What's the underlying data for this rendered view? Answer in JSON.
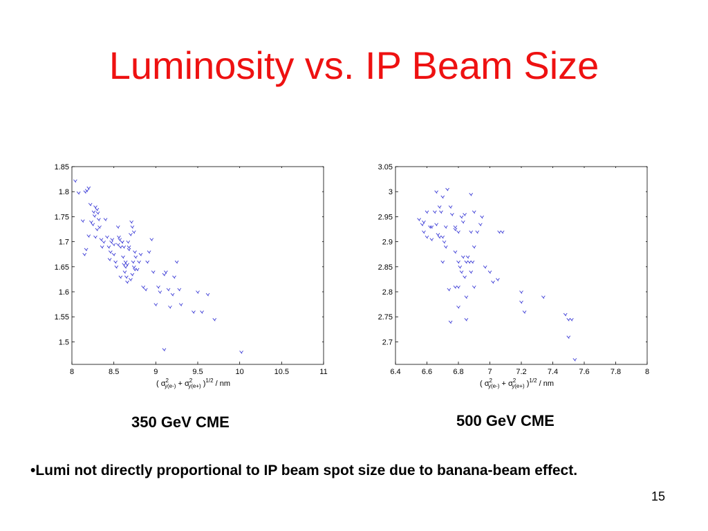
{
  "title": "Luminosity vs. IP Beam Size",
  "captions": {
    "left": "350 GeV CME",
    "right": "500 GeV CME"
  },
  "bullet": "•Lumi not directly proportional to IP beam spot size due to banana-beam effect.",
  "page_number": "15",
  "colors": {
    "title": "#ee1111",
    "points": "#3b3bd6"
  },
  "chart_data": [
    {
      "type": "scatter",
      "title": "350 GeV CME",
      "xlabel": "( σ²y(e-) + σ²y(e+) )^1/2 / nm",
      "ylabel": "",
      "xlim": [
        8,
        11
      ],
      "ylim": [
        1.455,
        1.85
      ],
      "xticks": [
        "8",
        "8.5",
        "9",
        "9.5",
        "10",
        "10.5",
        "11"
      ],
      "xtick_values": [
        8,
        8.5,
        9,
        9.5,
        10,
        10.5,
        11
      ],
      "yticks": [
        "1.5",
        "1.55",
        "1.6",
        "1.65",
        "1.7",
        "1.75",
        "1.8",
        "1.85"
      ],
      "ytick_values": [
        1.5,
        1.55,
        1.6,
        1.65,
        1.7,
        1.75,
        1.8,
        1.85
      ],
      "x": [
        8.04,
        8.08,
        8.13,
        8.16,
        8.18,
        8.2,
        8.22,
        8.15,
        8.17,
        8.2,
        8.23,
        8.25,
        8.27,
        8.28,
        8.3,
        8.31,
        8.32,
        8.33,
        8.3,
        8.28,
        8.26,
        8.35,
        8.36,
        8.38,
        8.4,
        8.42,
        8.44,
        8.45,
        8.46,
        8.47,
        8.48,
        8.5,
        8.52,
        8.53,
        8.55,
        8.56,
        8.57,
        8.58,
        8.6,
        8.61,
        8.62,
        8.63,
        8.64,
        8.65,
        8.66,
        8.67,
        8.68,
        8.7,
        8.71,
        8.72,
        8.73,
        8.74,
        8.75,
        8.76,
        8.6,
        8.62,
        8.64,
        8.7,
        8.72,
        8.75,
        8.78,
        8.8,
        8.82,
        8.85,
        8.88,
        8.9,
        8.92,
        8.95,
        8.97,
        9.0,
        9.03,
        9.05,
        9.1,
        9.12,
        9.15,
        9.17,
        9.2,
        9.22,
        9.25,
        9.28,
        9.3,
        9.45,
        9.5,
        9.55,
        9.62,
        9.7,
        9.1,
        10.02,
        8.58,
        8.68,
        8.74,
        8.55,
        8.5,
        8.66
      ],
      "y": [
        1.822,
        1.798,
        1.742,
        1.8,
        1.803,
        1.808,
        1.775,
        1.675,
        1.685,
        1.712,
        1.74,
        1.735,
        1.752,
        1.77,
        1.765,
        1.758,
        1.745,
        1.73,
        1.725,
        1.71,
        1.76,
        1.705,
        1.69,
        1.7,
        1.745,
        1.71,
        1.69,
        1.665,
        1.68,
        1.7,
        1.705,
        1.675,
        1.66,
        1.65,
        1.695,
        1.71,
        1.705,
        1.69,
        1.7,
        1.67,
        1.655,
        1.64,
        1.65,
        1.63,
        1.62,
        1.7,
        1.685,
        1.715,
        1.74,
        1.73,
        1.66,
        1.65,
        1.645,
        1.67,
        1.7,
        1.69,
        1.66,
        1.625,
        1.635,
        1.68,
        1.645,
        1.66,
        1.675,
        1.61,
        1.605,
        1.66,
        1.68,
        1.705,
        1.64,
        1.575,
        1.61,
        1.6,
        1.635,
        1.64,
        1.605,
        1.57,
        1.595,
        1.63,
        1.66,
        1.605,
        1.575,
        1.56,
        1.6,
        1.56,
        1.595,
        1.545,
        1.485,
        1.48,
        1.63,
        1.69,
        1.72,
        1.73,
        1.695,
        1.655
      ]
    },
    {
      "type": "scatter",
      "title": "500 GeV CME",
      "xlabel": "( σ²y(e-) + σ²y(e+) )^1/2 / nm",
      "ylabel": "",
      "xlim": [
        6.4,
        8
      ],
      "ylim": [
        2.655,
        3.05
      ],
      "xticks": [
        "6.4",
        "6.6",
        "6.8",
        "7",
        "7.2",
        "7.4",
        "7.6",
        "7.8",
        "8"
      ],
      "xtick_values": [
        6.4,
        6.6,
        6.8,
        7,
        7.2,
        7.4,
        7.6,
        7.8,
        8
      ],
      "yticks": [
        "2.7",
        "2.75",
        "2.8",
        "2.85",
        "2.9",
        "2.95",
        "3",
        "3.05"
      ],
      "ytick_values": [
        2.7,
        2.75,
        2.8,
        2.85,
        2.9,
        2.95,
        3.0,
        3.05
      ],
      "x": [
        6.55,
        6.57,
        6.58,
        6.6,
        6.62,
        6.63,
        6.58,
        6.6,
        6.65,
        6.67,
        6.68,
        6.7,
        6.72,
        6.66,
        6.69,
        6.63,
        6.7,
        6.72,
        6.75,
        6.76,
        6.78,
        6.78,
        6.8,
        6.82,
        6.8,
        6.81,
        6.82,
        6.83,
        6.84,
        6.85,
        6.86,
        6.87,
        6.88,
        6.89,
        6.9,
        6.92,
        6.94,
        6.95,
        6.9,
        6.97,
        7.0,
        7.02,
        7.05,
        7.06,
        6.78,
        6.74,
        6.8,
        6.83,
        6.85,
        6.88,
        6.88,
        6.75,
        6.71,
        6.7,
        6.8,
        6.85,
        7.2,
        7.2,
        7.22,
        7.34,
        7.48,
        7.5,
        7.5,
        7.52,
        7.54,
        6.73,
        6.78,
        6.84,
        6.68,
        6.66,
        6.9,
        7.08
      ],
      "y": [
        2.945,
        2.935,
        2.92,
        2.91,
        2.93,
        2.905,
        2.94,
        2.96,
        2.96,
        2.915,
        2.91,
        2.99,
        2.93,
        3.0,
        2.96,
        2.93,
        2.91,
        2.89,
        2.97,
        2.955,
        2.88,
        2.925,
        2.92,
        2.95,
        2.86,
        2.85,
        2.84,
        2.87,
        2.83,
        2.86,
        2.87,
        2.86,
        2.84,
        2.86,
        2.89,
        2.92,
        2.935,
        2.95,
        2.96,
        2.85,
        2.84,
        2.82,
        2.825,
        2.92,
        2.81,
        2.805,
        2.77,
        2.94,
        2.745,
        2.92,
        2.995,
        2.74,
        2.9,
        2.86,
        2.81,
        2.79,
        2.8,
        2.78,
        2.76,
        2.79,
        2.755,
        2.745,
        2.71,
        2.745,
        2.665,
        3.005,
        2.93,
        2.955,
        2.97,
        2.935,
        2.81,
        2.92
      ]
    }
  ]
}
